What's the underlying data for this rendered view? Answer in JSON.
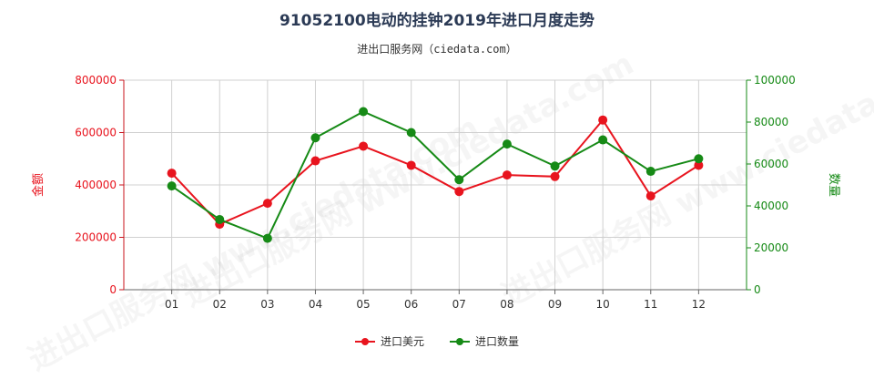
{
  "title": "91052100电动的挂钟2019年进口月度走势",
  "subtitle": "进出口服务网（ciedata.com）",
  "watermark": "进出口服务网 www.ciedata.com",
  "colors": {
    "left_series": "#e8141e",
    "right_series": "#168a16",
    "grid": "#d0d0d0"
  },
  "chart_data": {
    "type": "line",
    "categories": [
      "01",
      "02",
      "03",
      "04",
      "05",
      "06",
      "07",
      "08",
      "09",
      "10",
      "11",
      "12"
    ],
    "y_left": {
      "label": "金额",
      "ylim": [
        0,
        800000
      ],
      "ticks": [
        "0",
        "200000",
        "400000",
        "600000",
        "800000"
      ]
    },
    "y_right": {
      "label": "数量",
      "ylim": [
        0,
        100000
      ],
      "ticks": [
        "0",
        "20000",
        "40000",
        "60000",
        "80000",
        "100000"
      ]
    },
    "series": [
      {
        "name": "进口美元",
        "axis": "left",
        "color": "#e8141e",
        "values": [
          445000,
          250000,
          330000,
          492000,
          548000,
          475000,
          375000,
          438000,
          432000,
          648000,
          358000,
          475000
        ]
      },
      {
        "name": "进口数量",
        "axis": "right",
        "color": "#168a16",
        "values": [
          49500,
          33500,
          24500,
          72500,
          85000,
          75000,
          52500,
          69500,
          59000,
          71500,
          56500,
          62500
        ]
      }
    ],
    "grid": true,
    "legend_position": "bottom-center"
  }
}
